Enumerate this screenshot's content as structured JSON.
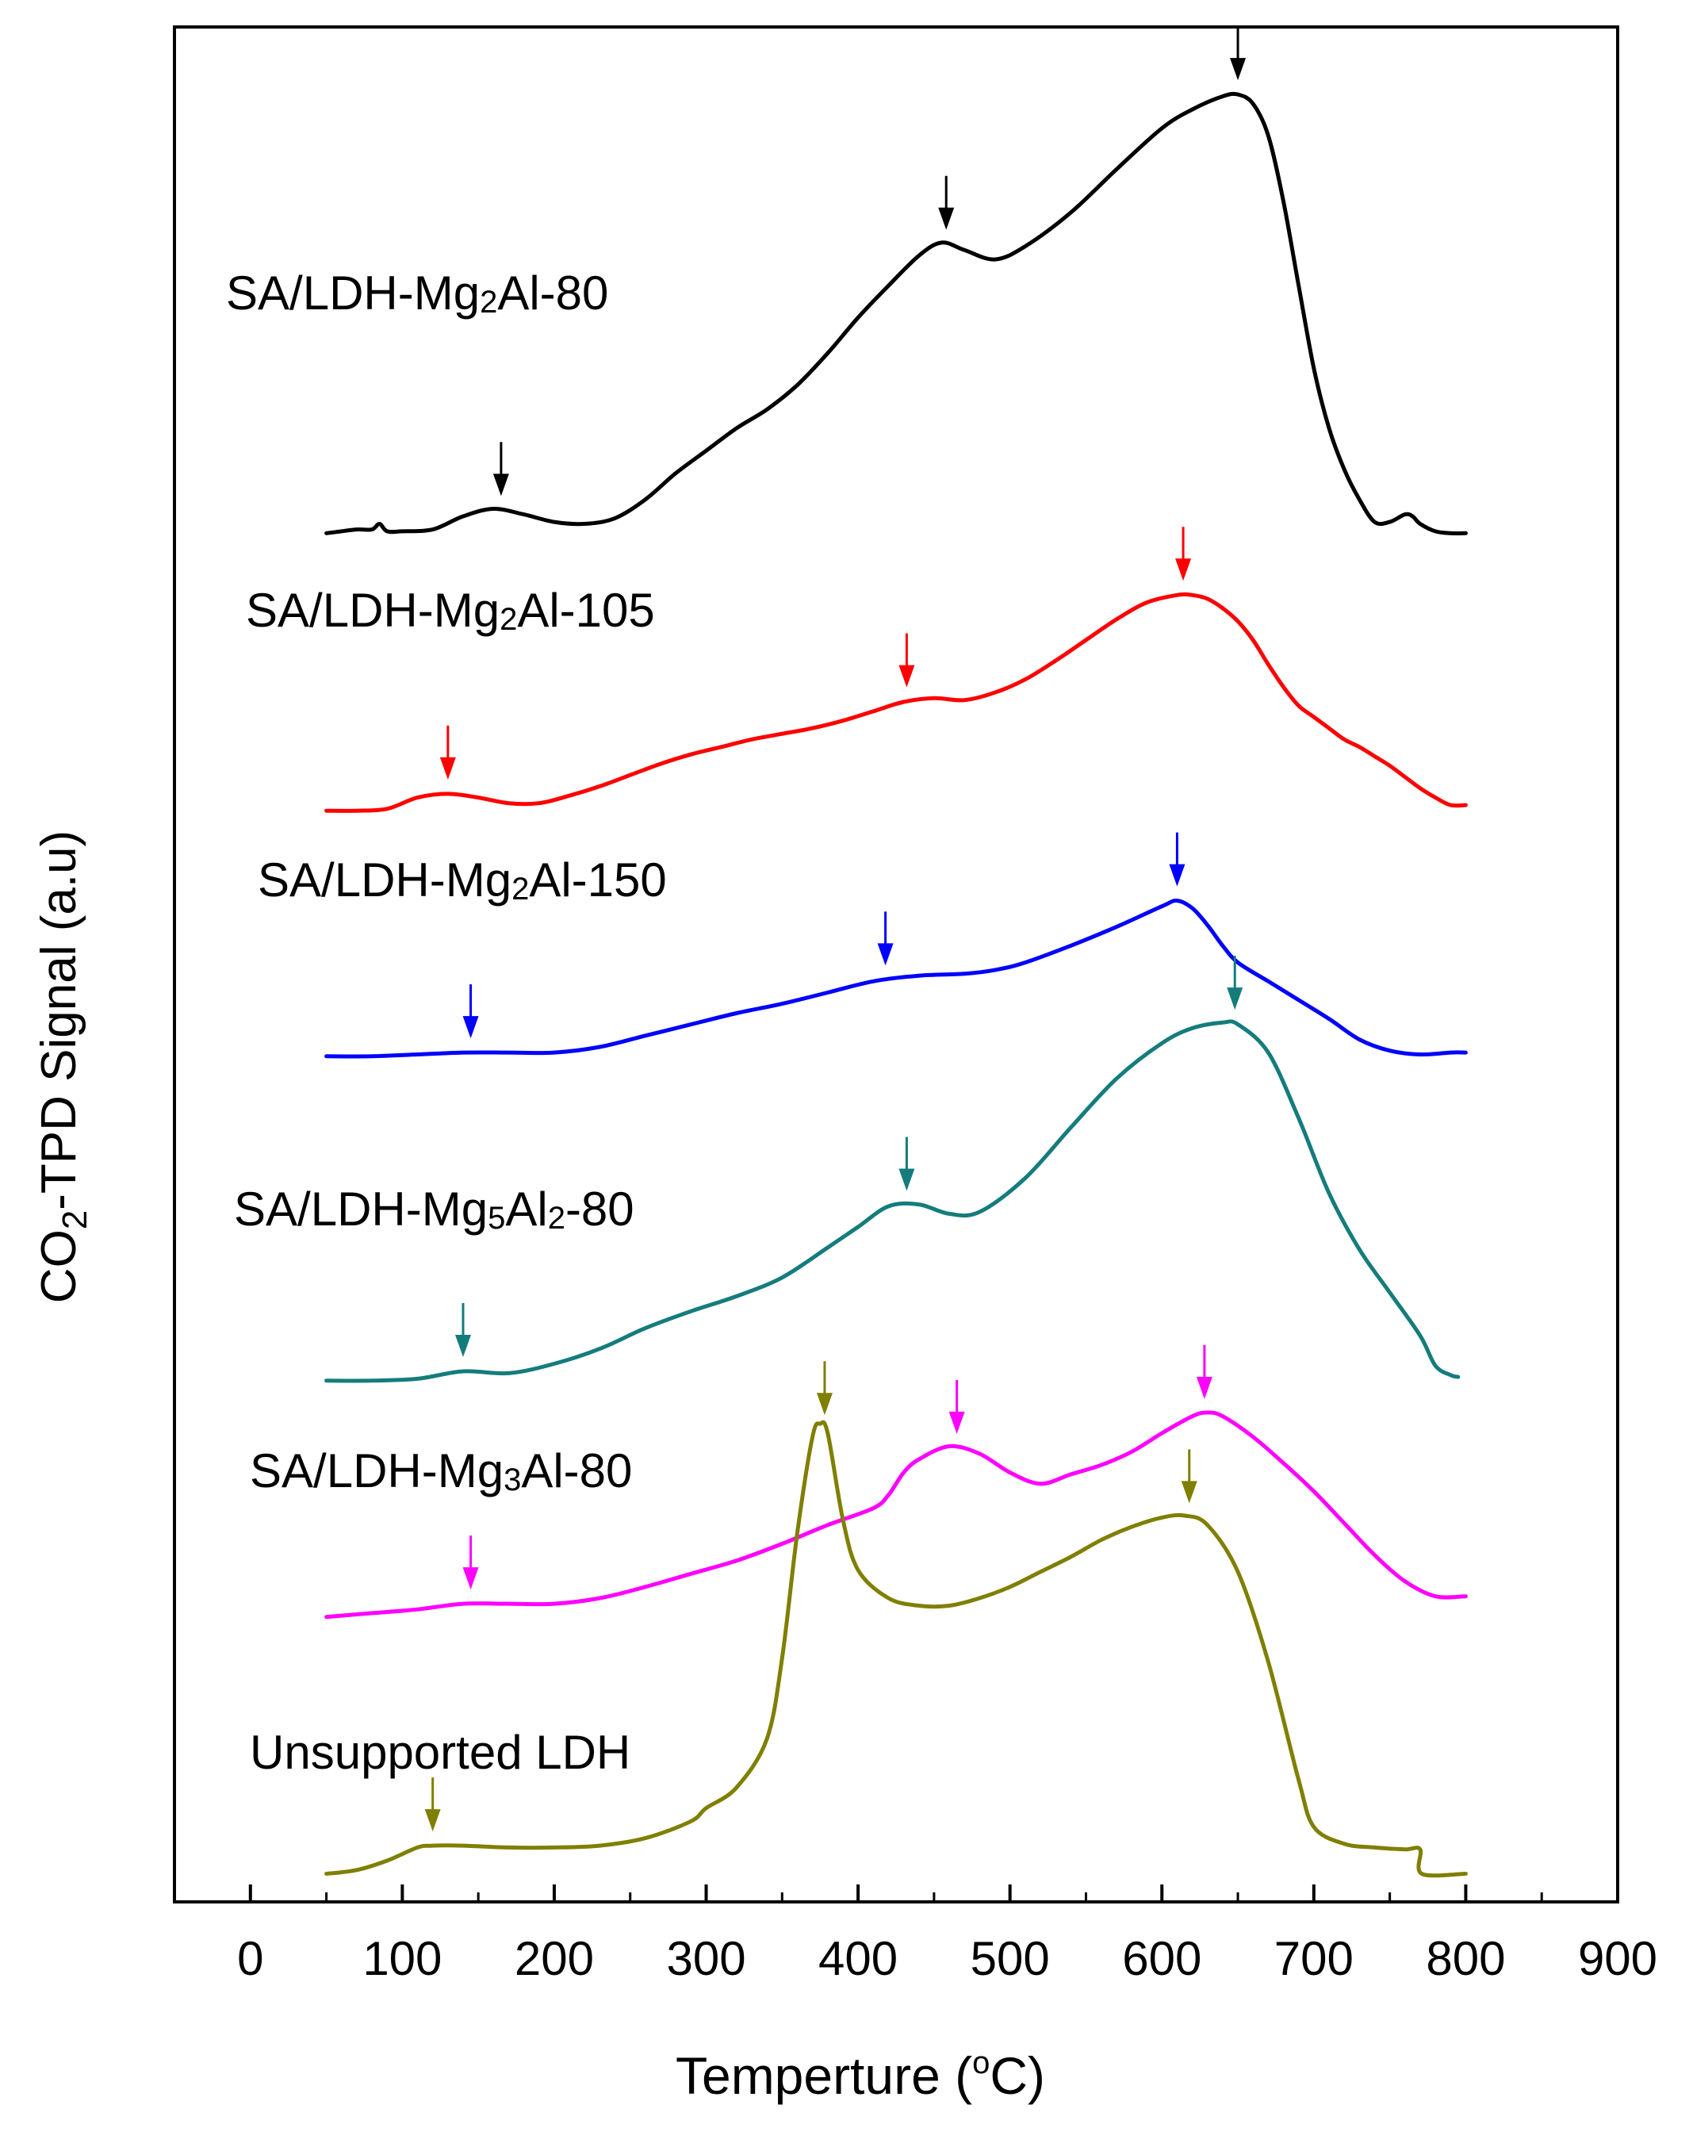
{
  "chart_data": {
    "type": "line",
    "title": "",
    "xlabel": {
      "main": "Temperture (",
      "degree": "o",
      "unit": "C)"
    },
    "ylabel": {
      "pre": "CO",
      "sub": "2",
      "post": "-TPD Signal (a.u)"
    },
    "xlim": [
      -50,
      900
    ],
    "xticks": [
      0,
      100,
      200,
      300,
      400,
      500,
      600,
      700,
      800,
      900
    ],
    "xtick_labels": [
      "0",
      "100",
      "200",
      "300",
      "400",
      "500",
      "600",
      "700",
      "800",
      "900"
    ],
    "y_ticks_shown": false,
    "ylim": [
      0,
      100
    ],
    "series": [
      {
        "name": "SA/LDH-Mg2Al-80",
        "label_parts": [
          {
            "t": "SA/LDH-Mg"
          },
          {
            "t": "2",
            "sub": true
          },
          {
            "t": "Al-80"
          }
        ],
        "color": "#000000",
        "x": [
          50,
          60,
          70,
          80,
          85,
          90,
          100,
          120,
          140,
          160,
          180,
          200,
          220,
          240,
          260,
          280,
          300,
          320,
          340,
          360,
          380,
          400,
          420,
          440,
          455,
          470,
          490,
          510,
          540,
          570,
          600,
          620,
          640,
          650,
          660,
          670,
          680,
          690,
          700,
          710,
          720,
          730,
          740,
          750,
          760,
          765,
          770,
          780,
          790,
          800
        ],
        "y": [
          73.0,
          73.1,
          73.2,
          73.2,
          73.5,
          73.1,
          73.1,
          73.2,
          73.9,
          74.3,
          74.0,
          73.6,
          73.5,
          73.8,
          74.8,
          76.2,
          77.4,
          78.6,
          79.6,
          80.9,
          82.6,
          84.5,
          86.2,
          87.8,
          88.5,
          88.1,
          87.6,
          88.3,
          90.1,
          92.4,
          94.6,
          95.6,
          96.3,
          96.4,
          95.9,
          94.2,
          90.7,
          86.2,
          81.8,
          78.6,
          76.4,
          74.8,
          73.6,
          73.6,
          74.0,
          73.9,
          73.5,
          73.1,
          73.0,
          73.0
        ],
        "peaks": [
          165,
          458,
          650
        ]
      },
      {
        "name": "SA/LDH-Mg2Al-105",
        "label_parts": [
          {
            "t": "SA/LDH-Mg"
          },
          {
            "t": "2",
            "sub": true
          },
          {
            "t": "Al-105"
          }
        ],
        "color": "#ff0000",
        "x": [
          50,
          70,
          90,
          110,
          130,
          150,
          170,
          190,
          210,
          230,
          250,
          270,
          290,
          310,
          330,
          350,
          370,
          390,
          410,
          430,
          450,
          470,
          490,
          510,
          530,
          550,
          570,
          590,
          610,
          620,
          630,
          640,
          650,
          660,
          670,
          680,
          690,
          700,
          710,
          720,
          730,
          740,
          750,
          760,
          770,
          780,
          790,
          800
        ],
        "y": [
          58.2,
          58.2,
          58.3,
          58.9,
          59.1,
          58.9,
          58.6,
          58.6,
          59.0,
          59.5,
          60.1,
          60.7,
          61.2,
          61.6,
          62.0,
          62.3,
          62.6,
          63.0,
          63.5,
          64.0,
          64.2,
          64.1,
          64.5,
          65.2,
          66.2,
          67.3,
          68.4,
          69.3,
          69.7,
          69.7,
          69.5,
          69.0,
          68.3,
          67.3,
          66.0,
          64.8,
          63.8,
          63.2,
          62.6,
          62.0,
          61.6,
          61.1,
          60.6,
          60.0,
          59.4,
          58.9,
          58.5,
          58.5
        ],
        "peaks": [
          130,
          432,
          614
        ]
      },
      {
        "name": "SA/LDH-Mg2Al-150",
        "label_parts": [
          {
            "t": "SA/LDH-Mg"
          },
          {
            "t": "2",
            "sub": true
          },
          {
            "t": "Al-150"
          }
        ],
        "color": "#0000ff",
        "x": [
          50,
          80,
          110,
          140,
          170,
          200,
          230,
          260,
          290,
          320,
          350,
          380,
          410,
          440,
          470,
          490,
          510,
          540,
          570,
          600,
          610,
          620,
          630,
          640,
          650,
          670,
          690,
          710,
          730,
          750,
          770,
          790,
          800
        ],
        "y": [
          45.1,
          45.1,
          45.2,
          45.3,
          45.3,
          45.3,
          45.6,
          46.2,
          46.8,
          47.4,
          47.9,
          48.5,
          49.1,
          49.4,
          49.5,
          49.7,
          50.1,
          51.0,
          52.0,
          53.1,
          53.4,
          53.0,
          52.1,
          51.0,
          50.1,
          49.1,
          48.1,
          47.1,
          46.0,
          45.4,
          45.2,
          45.3,
          45.3
        ],
        "peaks": [
          145,
          418,
          610
        ]
      },
      {
        "name": "SA/LDH-Mg5Al2-80",
        "label_parts": [
          {
            "t": "SA/LDH-Mg"
          },
          {
            "t": "5",
            "sub": true
          },
          {
            "t": "Al"
          },
          {
            "t": "2",
            "sub": true
          },
          {
            "t": "-80"
          }
        ],
        "color": "#157c7c",
        "x": [
          50,
          80,
          110,
          140,
          170,
          200,
          230,
          260,
          290,
          320,
          350,
          380,
          400,
          420,
          440,
          460,
          480,
          510,
          540,
          570,
          600,
          620,
          640,
          650,
          670,
          690,
          710,
          730,
          750,
          770,
          780,
          790,
          795
        ],
        "y": [
          27.8,
          27.8,
          27.9,
          28.3,
          28.2,
          28.7,
          29.5,
          30.6,
          31.5,
          32.3,
          33.3,
          34.9,
          36.0,
          37.1,
          37.2,
          36.7,
          36.8,
          38.6,
          41.3,
          43.9,
          45.8,
          46.6,
          46.9,
          46.8,
          45.3,
          41.8,
          37.8,
          34.8,
          32.5,
          30.2,
          28.6,
          28.1,
          28.0
        ],
        "peaks": [
          140,
          432,
          648
        ]
      },
      {
        "name": "SA/LDH-Mg3Al-80",
        "label_parts": [
          {
            "t": "SA/LDH-Mg"
          },
          {
            "t": "3",
            "sub": true
          },
          {
            "t": "Al-80"
          }
        ],
        "color": "#ff00ff",
        "x": [
          50,
          80,
          110,
          140,
          170,
          200,
          230,
          260,
          290,
          320,
          350,
          380,
          410,
          420,
          430,
          440,
          460,
          480,
          500,
          520,
          540,
          560,
          580,
          600,
          620,
          630,
          640,
          660,
          680,
          700,
          720,
          740,
          760,
          780,
          800
        ],
        "y": [
          15.2,
          15.4,
          15.6,
          15.9,
          15.9,
          15.9,
          16.2,
          16.8,
          17.5,
          18.2,
          19.1,
          20.1,
          21.0,
          21.7,
          22.9,
          23.6,
          24.3,
          23.9,
          22.9,
          22.3,
          22.8,
          23.3,
          24.0,
          25.0,
          25.9,
          26.1,
          25.9,
          24.8,
          23.4,
          21.9,
          20.2,
          18.5,
          17.1,
          16.3,
          16.3
        ],
        "peaks": [
          145,
          465,
          628
        ]
      },
      {
        "name": "Unsupported LDH",
        "label_parts": [
          {
            "t": "Unsupported LDH"
          }
        ],
        "color": "#7f7f00",
        "x": [
          50,
          70,
          90,
          110,
          120,
          140,
          170,
          200,
          230,
          260,
          290,
          300,
          320,
          340,
          350,
          360,
          370,
          375,
          380,
          390,
          400,
          420,
          440,
          460,
          480,
          500,
          520,
          540,
          560,
          580,
          600,
          615,
          630,
          650,
          670,
          690,
          700,
          720,
          740,
          760,
          770,
          771,
          800
        ],
        "y": [
          1.5,
          1.7,
          2.2,
          2.9,
          3.0,
          3.0,
          2.9,
          2.9,
          3.0,
          3.4,
          4.3,
          5.0,
          6.1,
          8.7,
          13.0,
          19.7,
          24.8,
          25.5,
          25.0,
          20.4,
          17.7,
          16.2,
          15.8,
          15.8,
          16.2,
          16.8,
          17.6,
          18.4,
          19.3,
          20.0,
          20.5,
          20.6,
          20.1,
          17.6,
          12.8,
          6.5,
          4.0,
          3.1,
          2.9,
          2.8,
          2.8,
          1.5,
          1.5
        ],
        "peaks": [
          120,
          378,
          618
        ]
      }
    ]
  }
}
